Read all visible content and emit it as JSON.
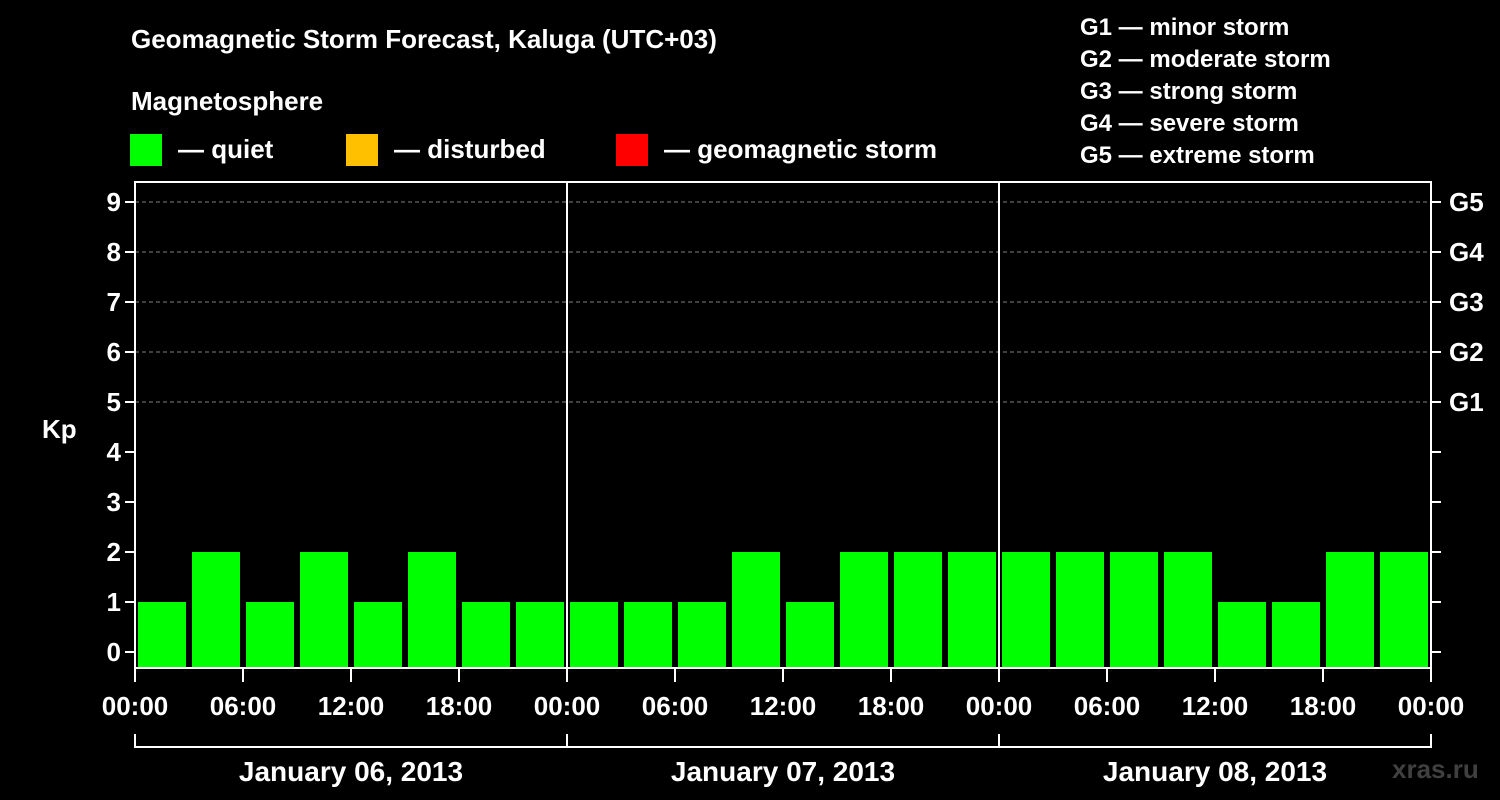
{
  "header": {
    "title": "Geomagnetic Storm Forecast, Kaluga (UTC+03)",
    "magnetosphere_label": "Magnetosphere",
    "watermark": "xras.ru"
  },
  "legend": [
    {
      "label": "— quiet",
      "color": "#00ff00"
    },
    {
      "label": "— disturbed",
      "color": "#ffc000"
    },
    {
      "label": "— geomagnetic storm",
      "color": "#ff0000"
    }
  ],
  "storm_scale": [
    "G1 — minor storm",
    "G2 — moderate storm",
    "G3 — strong storm",
    "G4 — severe storm",
    "G5 — extreme storm"
  ],
  "chart_data": {
    "type": "bar",
    "ylabel": "Kp",
    "ylim": [
      0,
      9
    ],
    "yticks": [
      0,
      1,
      2,
      3,
      4,
      5,
      6,
      7,
      8,
      9
    ],
    "g_levels": [
      {
        "label": "G1",
        "kp": 5
      },
      {
        "label": "G2",
        "kp": 6
      },
      {
        "label": "G3",
        "kp": 7
      },
      {
        "label": "G4",
        "kp": 8
      },
      {
        "label": "G5",
        "kp": 9
      }
    ],
    "x_tick_labels": [
      "00:00",
      "06:00",
      "12:00",
      "18:00",
      "00:00",
      "06:00",
      "12:00",
      "18:00",
      "00:00",
      "06:00",
      "12:00",
      "18:00",
      "00:00"
    ],
    "days": [
      "January 06, 2013",
      "January 07, 2013",
      "January 08, 2013"
    ],
    "interval_hours": 3,
    "values": [
      1,
      2,
      1,
      2,
      1,
      2,
      1,
      1,
      1,
      1,
      1,
      2,
      1,
      2,
      2,
      2,
      2,
      2,
      2,
      2,
      1,
      1,
      2,
      2
    ],
    "bar_colors": [
      "#00ff00",
      "#00ff00",
      "#00ff00",
      "#00ff00",
      "#00ff00",
      "#00ff00",
      "#00ff00",
      "#00ff00",
      "#00ff00",
      "#00ff00",
      "#00ff00",
      "#00ff00",
      "#00ff00",
      "#00ff00",
      "#00ff00",
      "#00ff00",
      "#00ff00",
      "#00ff00",
      "#00ff00",
      "#00ff00",
      "#00ff00",
      "#00ff00",
      "#00ff00",
      "#00ff00"
    ],
    "grid": true
  }
}
